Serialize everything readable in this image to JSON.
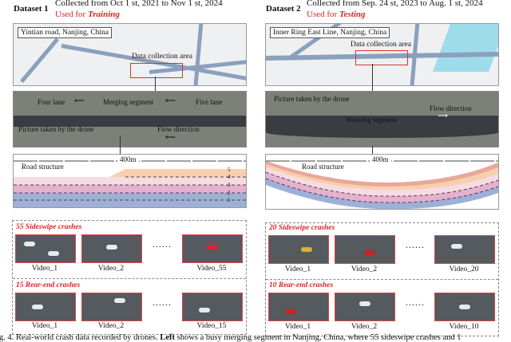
{
  "left": {
    "dataset": "Dataset 1",
    "collected": "Collected from Oct 1 st, 2021 to Nov 1 st, 2024",
    "used_prefix": "Used for ",
    "used_emph": "Training",
    "map_label": "Yintian road, Nanjing, China",
    "data_area": "Data collection area",
    "drone": {
      "four": "Four lane",
      "merging": "Merging segment",
      "five": "Five lane",
      "picture": "Picture taken by the drone",
      "flow": "Flow direction",
      "arrow_left": "⟵"
    },
    "structure": {
      "length": "400m",
      "label": "Road structure",
      "lanes": [
        "5",
        "4",
        "3",
        "2",
        "1"
      ]
    },
    "sideswipe": {
      "title": "55 Sideswipe crashes",
      "videos": [
        "Video_1",
        "Video_2",
        "Video_55"
      ]
    },
    "rearend": {
      "title": "15 Rear-end crashes",
      "videos": [
        "Video_1",
        "Video_2",
        "Video_15"
      ]
    }
  },
  "right": {
    "dataset": "Dataset 2",
    "collected": "Collected from Sep. 24 st, 2023 to Aug. 1 st, 2024",
    "used_prefix": "Used for ",
    "used_emph": "Testing",
    "map_label": "Inner Ring East Line, Nanjing, China",
    "data_area": "Data collection area",
    "drone": {
      "picture": "Picture taken by the drone",
      "weaving": "Weaving segment",
      "flow": "Flow direction",
      "arrow_right": "⟶"
    },
    "structure": {
      "length": "400m",
      "label": "Road structure"
    },
    "sideswipe": {
      "title": "20 Sideswipe crashes",
      "videos": [
        "Video_1",
        "Video_2",
        "Video_20"
      ]
    },
    "rearend": {
      "title": "10 Rear-end crashes",
      "videos": [
        "Video_1",
        "Video_2",
        "Video_10"
      ]
    }
  },
  "dots": "......",
  "caption": {
    "pre": "ig. 4. Real-world crash data recorded by drones. ",
    "bold": "Left",
    "post": " shows a busy merging segment in Nanjing, China, where 55 sideswipe crashes and 1"
  },
  "colors": {
    "accent_red": "#d22222",
    "lane_blue": "#9fb0d8",
    "lane_pink": "#e6b0cf",
    "lane_orange": "#f7cfae"
  }
}
